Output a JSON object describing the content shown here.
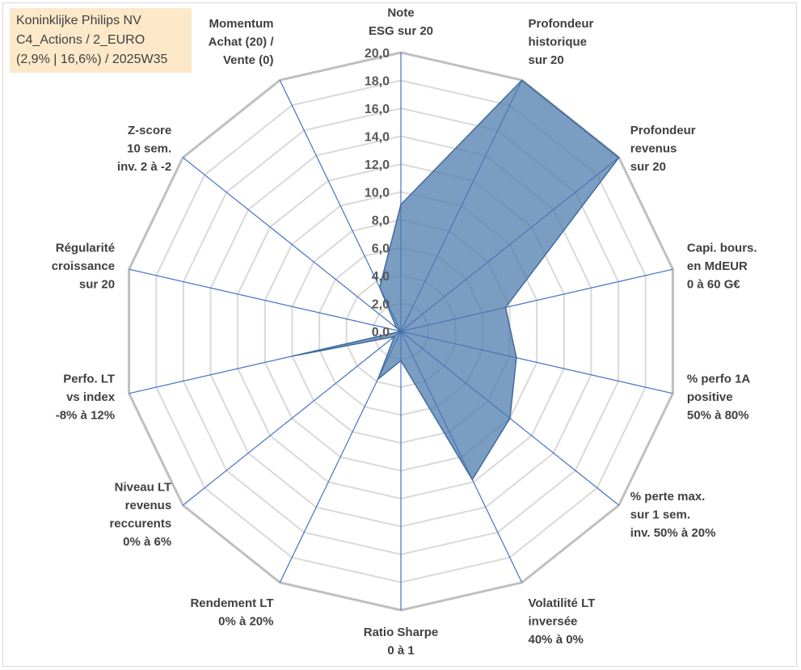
{
  "info_box": {
    "line1": "Koninklijke Philips NV",
    "line2": "C4_Actions / 2_EURO",
    "line3": "(2,9% | 16,6%) / 2025W35"
  },
  "chart_data": {
    "type": "radar",
    "title": "",
    "range": [
      0,
      20
    ],
    "tick_step": 2,
    "tick_labels": [
      "0,0",
      "2,0",
      "4,0",
      "6,0",
      "8,0",
      "10,0",
      "12,0",
      "14,0",
      "16,0",
      "18,0",
      "20,0"
    ],
    "categories": [
      "Note\nESG sur 20",
      "Profondeur\nhistorique\nsur 20",
      "Profondeur\nrevenus\nsur 20",
      "Capi. bours.\nen MdEUR\n0 à 60 G€",
      "% perfo 1A\npositive\n50% à 80%",
      "% perte max.\nsur 1 sem.\ninv. 50% à 20%",
      "Volatilité LT\ninversée\n40% à 0%",
      "Ratio Sharpe\n0 à 1",
      "Rendement LT\n0% à 20%",
      "Niveau LT\nrevenus\nreccurents\n0% à 6%",
      "Perfo. LT\nvs index\n-8% à 12%",
      "Régularité\ncroissance\nsur 20",
      "Z-score\n10 sem.\ninv. 2 à -2",
      "Momentum\nAchat (20) /\nVente (0)"
    ],
    "series": [
      {
        "values": [
          9.1,
          20.0,
          20.0,
          7.7,
          8.5,
          10.0,
          11.8,
          2.1,
          3.8,
          0.6,
          8.0,
          0.0,
          0.4,
          3.5
        ]
      }
    ],
    "colors": {
      "fill": "#4a77aa",
      "stroke": "#3f6c9e",
      "spokes": "#4472c4",
      "grid": "#d9d9d9",
      "outer": "#bfbfbf"
    },
    "grid": true,
    "legend": "none"
  }
}
